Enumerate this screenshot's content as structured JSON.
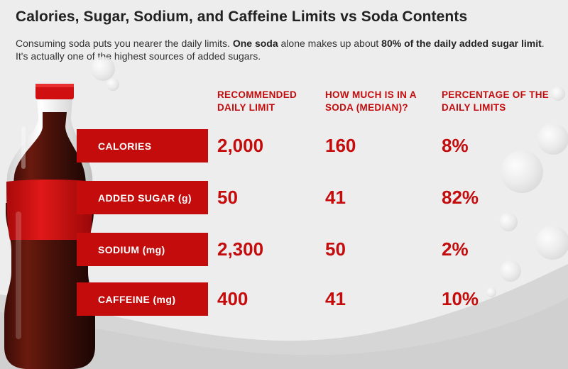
{
  "title": "Calories, Sugar, Sodium, and Caffeine Limits vs Soda Contents",
  "intro": {
    "t1": "Consuming soda puts you nearer the daily limits. ",
    "b1": "One soda",
    "t2": " alone makes up about ",
    "b2": "80% of the daily added sugar limit",
    "t3": ". It's actually one of the highest sources of added sugars."
  },
  "columns": {
    "c1_line1": "RECOMMENDED",
    "c1_line2": "DAILY LIMIT",
    "c2_line1": "HOW MUCH IS IN A",
    "c2_line2": "SODA (MEDIAN)?",
    "c3_line1": "PERCENTAGE OF THE",
    "c3_line2": "DAILY LIMITS"
  },
  "rows": [
    {
      "label": "CALORIES",
      "limit": "2,000",
      "soda": "160",
      "pct": "8%"
    },
    {
      "label": "ADDED SUGAR (g)",
      "limit": "50",
      "soda": "41",
      "pct": "82%"
    },
    {
      "label": "SODIUM (mg)",
      "limit": "2,300",
      "soda": "50",
      "pct": "2%"
    },
    {
      "label": "CAFFEINE (mg)",
      "limit": "400",
      "soda": "41",
      "pct": "10%"
    }
  ],
  "colors": {
    "accent": "#c40c0c",
    "background": "#ededed",
    "text": "#222222"
  },
  "icons": {
    "bottle": "soda-bottle-illustration",
    "bubbles": "bubble-decoration"
  }
}
